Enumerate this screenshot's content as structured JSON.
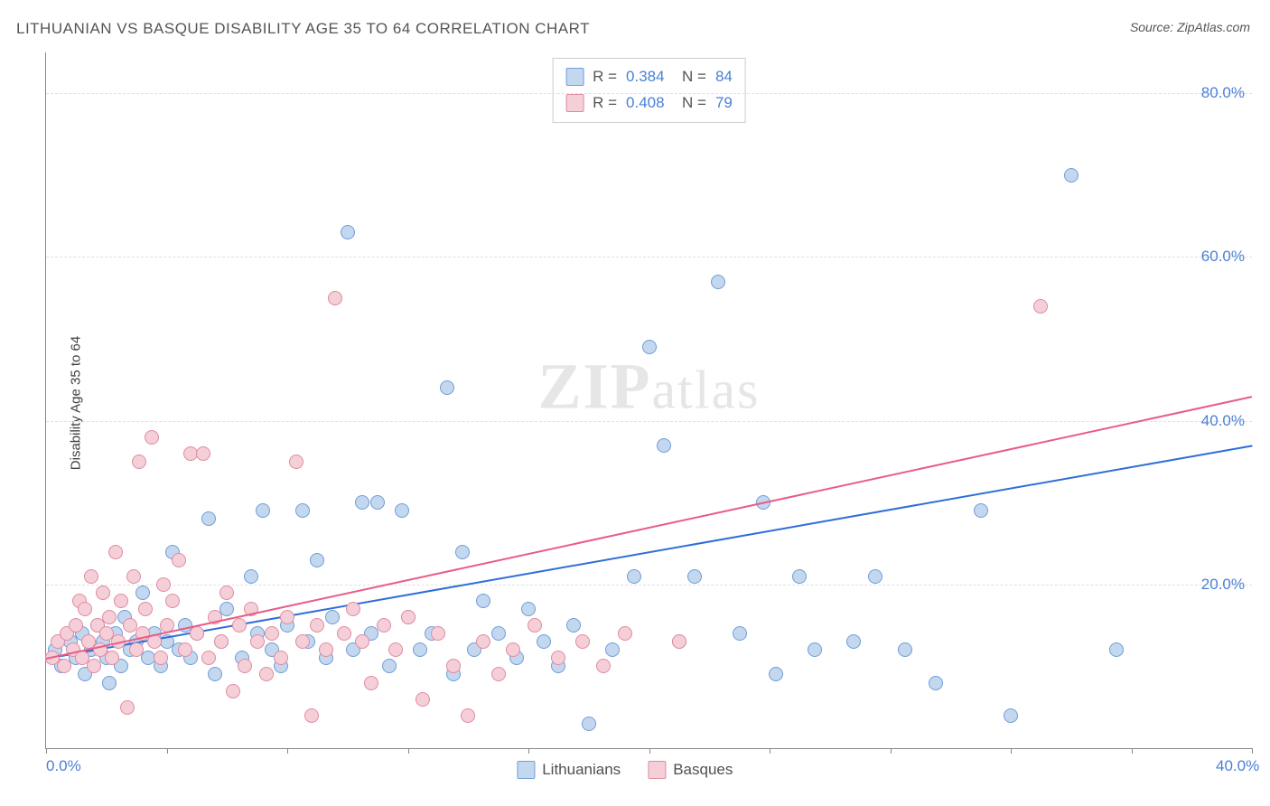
{
  "title": "LITHUANIAN VS BASQUE DISABILITY AGE 35 TO 64 CORRELATION CHART",
  "source": "Source: ZipAtlas.com",
  "ylabel": "Disability Age 35 to 64",
  "watermark_zip": "ZIP",
  "watermark_atlas": "atlas",
  "chart": {
    "type": "scatter",
    "xlim": [
      0,
      40
    ],
    "ylim": [
      0,
      85
    ],
    "x_ticks_minor": [
      0,
      4,
      8,
      12,
      16,
      20,
      24,
      28,
      32,
      36,
      40
    ],
    "x_labels": [
      {
        "v": 0,
        "t": "0.0%"
      },
      {
        "v": 40,
        "t": "40.0%"
      }
    ],
    "y_grid": [
      20,
      40,
      60,
      80
    ],
    "y_labels": [
      {
        "v": 20,
        "t": "20.0%"
      },
      {
        "v": 40,
        "t": "40.0%"
      },
      {
        "v": 60,
        "t": "60.0%"
      },
      {
        "v": 80,
        "t": "80.0%"
      }
    ],
    "background_color": "#ffffff",
    "grid_color": "#e0e0e0",
    "axis_color": "#888888",
    "tick_label_color": "#4a80d6",
    "series": [
      {
        "name": "Lithuanians",
        "fill": "#c3d7ef",
        "stroke": "#6f9dd8",
        "line_color": "#2e6ed8",
        "r_value": "0.384",
        "n_value": "84",
        "trend": {
          "x1": 0,
          "y1": 11,
          "x2": 40,
          "y2": 37
        },
        "points": [
          [
            0.3,
            12
          ],
          [
            0.5,
            10
          ],
          [
            0.8,
            13
          ],
          [
            1.0,
            11
          ],
          [
            1.2,
            14
          ],
          [
            1.3,
            9
          ],
          [
            1.5,
            12
          ],
          [
            1.7,
            15
          ],
          [
            1.9,
            13
          ],
          [
            2.0,
            11
          ],
          [
            2.1,
            8
          ],
          [
            2.3,
            14
          ],
          [
            2.5,
            10
          ],
          [
            2.6,
            16
          ],
          [
            2.8,
            12
          ],
          [
            3.0,
            13
          ],
          [
            3.2,
            19
          ],
          [
            3.4,
            11
          ],
          [
            3.6,
            14
          ],
          [
            3.8,
            10
          ],
          [
            4.0,
            13
          ],
          [
            4.2,
            24
          ],
          [
            4.4,
            12
          ],
          [
            4.6,
            15
          ],
          [
            4.8,
            11
          ],
          [
            5.0,
            14
          ],
          [
            5.4,
            28
          ],
          [
            5.6,
            9
          ],
          [
            5.8,
            13
          ],
          [
            6.0,
            17
          ],
          [
            6.5,
            11
          ],
          [
            6.8,
            21
          ],
          [
            7.0,
            14
          ],
          [
            7.2,
            29
          ],
          [
            7.5,
            12
          ],
          [
            7.8,
            10
          ],
          [
            8.0,
            15
          ],
          [
            8.5,
            29
          ],
          [
            8.7,
            13
          ],
          [
            9.0,
            23
          ],
          [
            9.3,
            11
          ],
          [
            9.5,
            16
          ],
          [
            10.0,
            63
          ],
          [
            10.2,
            12
          ],
          [
            10.5,
            30
          ],
          [
            10.8,
            14
          ],
          [
            11.0,
            30
          ],
          [
            11.4,
            10
          ],
          [
            11.8,
            29
          ],
          [
            12.0,
            16
          ],
          [
            12.4,
            12
          ],
          [
            12.8,
            14
          ],
          [
            13.3,
            44
          ],
          [
            13.5,
            9
          ],
          [
            13.8,
            24
          ],
          [
            14.2,
            12
          ],
          [
            14.5,
            18
          ],
          [
            15.0,
            14
          ],
          [
            15.6,
            11
          ],
          [
            16.0,
            17
          ],
          [
            16.5,
            13
          ],
          [
            17.0,
            10
          ],
          [
            17.5,
            15
          ],
          [
            18.0,
            3
          ],
          [
            18.8,
            12
          ],
          [
            19.5,
            21
          ],
          [
            20.0,
            49
          ],
          [
            20.5,
            37
          ],
          [
            21.0,
            13
          ],
          [
            21.5,
            21
          ],
          [
            22.3,
            57
          ],
          [
            23.0,
            14
          ],
          [
            23.8,
            30
          ],
          [
            24.2,
            9
          ],
          [
            25.0,
            21
          ],
          [
            25.5,
            12
          ],
          [
            26.8,
            13
          ],
          [
            27.5,
            21
          ],
          [
            28.5,
            12
          ],
          [
            29.5,
            8
          ],
          [
            31.0,
            29
          ],
          [
            32.0,
            4
          ],
          [
            34.0,
            70
          ],
          [
            35.5,
            12
          ]
        ]
      },
      {
        "name": "Basques",
        "fill": "#f5cfd8",
        "stroke": "#e08aa0",
        "line_color": "#e85c87",
        "r_value": "0.408",
        "n_value": "79",
        "trend": {
          "x1": 0,
          "y1": 11,
          "x2": 40,
          "y2": 43
        },
        "points": [
          [
            0.2,
            11
          ],
          [
            0.4,
            13
          ],
          [
            0.6,
            10
          ],
          [
            0.7,
            14
          ],
          [
            0.9,
            12
          ],
          [
            1.0,
            15
          ],
          [
            1.1,
            18
          ],
          [
            1.2,
            11
          ],
          [
            1.3,
            17
          ],
          [
            1.4,
            13
          ],
          [
            1.5,
            21
          ],
          [
            1.6,
            10
          ],
          [
            1.7,
            15
          ],
          [
            1.8,
            12
          ],
          [
            1.9,
            19
          ],
          [
            2.0,
            14
          ],
          [
            2.1,
            16
          ],
          [
            2.2,
            11
          ],
          [
            2.3,
            24
          ],
          [
            2.4,
            13
          ],
          [
            2.5,
            18
          ],
          [
            2.7,
            5
          ],
          [
            2.8,
            15
          ],
          [
            2.9,
            21
          ],
          [
            3.0,
            12
          ],
          [
            3.1,
            35
          ],
          [
            3.2,
            14
          ],
          [
            3.3,
            17
          ],
          [
            3.5,
            38
          ],
          [
            3.6,
            13
          ],
          [
            3.8,
            11
          ],
          [
            3.9,
            20
          ],
          [
            4.0,
            15
          ],
          [
            4.2,
            18
          ],
          [
            4.4,
            23
          ],
          [
            4.6,
            12
          ],
          [
            4.8,
            36
          ],
          [
            5.0,
            14
          ],
          [
            5.2,
            36
          ],
          [
            5.4,
            11
          ],
          [
            5.6,
            16
          ],
          [
            5.8,
            13
          ],
          [
            6.0,
            19
          ],
          [
            6.2,
            7
          ],
          [
            6.4,
            15
          ],
          [
            6.6,
            10
          ],
          [
            6.8,
            17
          ],
          [
            7.0,
            13
          ],
          [
            7.3,
            9
          ],
          [
            7.5,
            14
          ],
          [
            7.8,
            11
          ],
          [
            8.0,
            16
          ],
          [
            8.3,
            35
          ],
          [
            8.5,
            13
          ],
          [
            8.8,
            4
          ],
          [
            9.0,
            15
          ],
          [
            9.3,
            12
          ],
          [
            9.6,
            55
          ],
          [
            9.9,
            14
          ],
          [
            10.2,
            17
          ],
          [
            10.5,
            13
          ],
          [
            10.8,
            8
          ],
          [
            11.2,
            15
          ],
          [
            11.6,
            12
          ],
          [
            12.0,
            16
          ],
          [
            12.5,
            6
          ],
          [
            13.0,
            14
          ],
          [
            13.5,
            10
          ],
          [
            14.0,
            4
          ],
          [
            14.5,
            13
          ],
          [
            15.0,
            9
          ],
          [
            15.5,
            12
          ],
          [
            16.2,
            15
          ],
          [
            17.0,
            11
          ],
          [
            17.8,
            13
          ],
          [
            18.5,
            10
          ],
          [
            19.2,
            14
          ],
          [
            21.0,
            13
          ],
          [
            33.0,
            54
          ]
        ]
      }
    ]
  },
  "legend_bottom": [
    {
      "label": "Lithuanians"
    },
    {
      "label": "Basques"
    }
  ]
}
